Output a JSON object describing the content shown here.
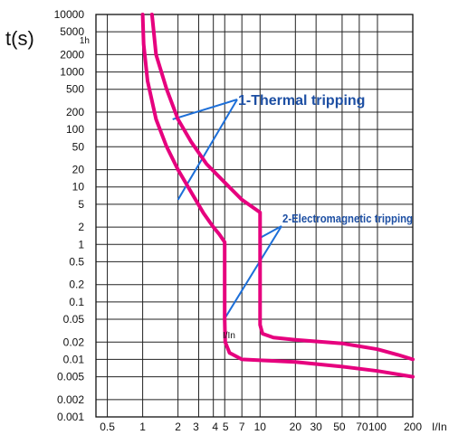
{
  "chart_data": {
    "type": "line",
    "ylabel": "t(s)",
    "xlabel": "I/In",
    "x_scale": "log",
    "y_scale": "log",
    "xlim": [
      0.4,
      200
    ],
    "ylim": [
      0.001,
      10000
    ],
    "grid": true,
    "x_ticks": [
      {
        "value": 0.5,
        "label": "0.5"
      },
      {
        "value": 1,
        "label": "1"
      },
      {
        "value": 2,
        "label": "2"
      },
      {
        "value": 3,
        "label": "3"
      },
      {
        "value": 4,
        "label": "4"
      },
      {
        "value": 5,
        "label": "5"
      },
      {
        "value": 7,
        "label": "7"
      },
      {
        "value": 10,
        "label": "10"
      },
      {
        "value": 20,
        "label": "20"
      },
      {
        "value": 30,
        "label": "30"
      },
      {
        "value": 50,
        "label": "50"
      },
      {
        "value": 70,
        "label": "70"
      },
      {
        "value": 100,
        "label": "100"
      },
      {
        "value": 200,
        "label": "200"
      }
    ],
    "x_gridlines": [
      0.5,
      1,
      2,
      3,
      4,
      5,
      7,
      10,
      20,
      30,
      50,
      70,
      100,
      200
    ],
    "y_ticks": [
      {
        "value": 10000,
        "label": "10000"
      },
      {
        "value": 5000,
        "label": "5000"
      },
      {
        "value": 3600,
        "label": "1h"
      },
      {
        "value": 2000,
        "label": "2000"
      },
      {
        "value": 1000,
        "label": "1000"
      },
      {
        "value": 500,
        "label": "500"
      },
      {
        "value": 200,
        "label": "200"
      },
      {
        "value": 100,
        "label": "100"
      },
      {
        "value": 50,
        "label": "50"
      },
      {
        "value": 20,
        "label": "20"
      },
      {
        "value": 10,
        "label": "10"
      },
      {
        "value": 5,
        "label": "5"
      },
      {
        "value": 2,
        "label": "2"
      },
      {
        "value": 1,
        "label": "1"
      },
      {
        "value": 0.5,
        "label": "0.5"
      },
      {
        "value": 0.2,
        "label": "0.2"
      },
      {
        "value": 0.1,
        "label": "0.1"
      },
      {
        "value": 0.05,
        "label": "0.05"
      },
      {
        "value": 0.02,
        "label": "0.02"
      },
      {
        "value": 0.01,
        "label": "0.01"
      },
      {
        "value": 0.005,
        "label": "0.005"
      },
      {
        "value": 0.002,
        "label": "0.002"
      },
      {
        "value": 0.001,
        "label": "0.001"
      }
    ],
    "y_gridlines": [
      10000,
      5000,
      2000,
      1000,
      500,
      200,
      100,
      50,
      20,
      10,
      5,
      2,
      1,
      0.5,
      0.2,
      0.1,
      0.05,
      0.02,
      0.01,
      0.005,
      0.002,
      0.001
    ],
    "series": [
      {
        "color": "#e6007e",
        "points": [
          [
            1,
            10000
          ],
          [
            1.02,
            3000
          ],
          [
            1.1,
            700
          ],
          [
            1.3,
            150
          ],
          [
            1.6,
            50
          ],
          [
            2,
            20
          ],
          [
            2.6,
            8
          ],
          [
            3.3,
            3.5
          ],
          [
            4,
            2
          ],
          [
            4.5,
            1.5
          ],
          [
            5,
            1.1
          ],
          [
            5,
            0.3
          ],
          [
            5,
            0.05
          ],
          [
            5.05,
            0.02
          ],
          [
            5.5,
            0.013
          ],
          [
            7,
            0.01
          ],
          [
            20,
            0.009
          ],
          [
            50,
            0.0075
          ],
          [
            100,
            0.0063
          ],
          [
            200,
            0.005
          ]
        ]
      },
      {
        "color": "#e6007e",
        "points": [
          [
            1.2,
            10000
          ],
          [
            1.3,
            2000
          ],
          [
            1.6,
            500
          ],
          [
            2,
            150
          ],
          [
            2.6,
            60
          ],
          [
            3.5,
            25
          ],
          [
            5,
            12
          ],
          [
            7,
            6
          ],
          [
            10,
            3.6
          ],
          [
            10,
            1
          ],
          [
            10,
            0.1
          ],
          [
            10,
            0.04
          ],
          [
            10.5,
            0.028
          ],
          [
            13,
            0.024
          ],
          [
            20,
            0.022
          ],
          [
            50,
            0.019
          ],
          [
            100,
            0.015
          ],
          [
            150,
            0.012
          ],
          [
            200,
            0.01
          ]
        ]
      }
    ],
    "annotations": [
      {
        "text": "1-Thermal tripping",
        "pointers": [
          [
            1.8,
            150
          ],
          [
            2,
            6
          ]
        ]
      },
      {
        "text": "2-Electromagnetic tripping",
        "pointers": [
          [
            10,
            1.3
          ],
          [
            5.1,
            0.055
          ]
        ]
      },
      {
        "text": "I/In",
        "anchor": [
          6.3,
          0.027
        ]
      }
    ]
  }
}
